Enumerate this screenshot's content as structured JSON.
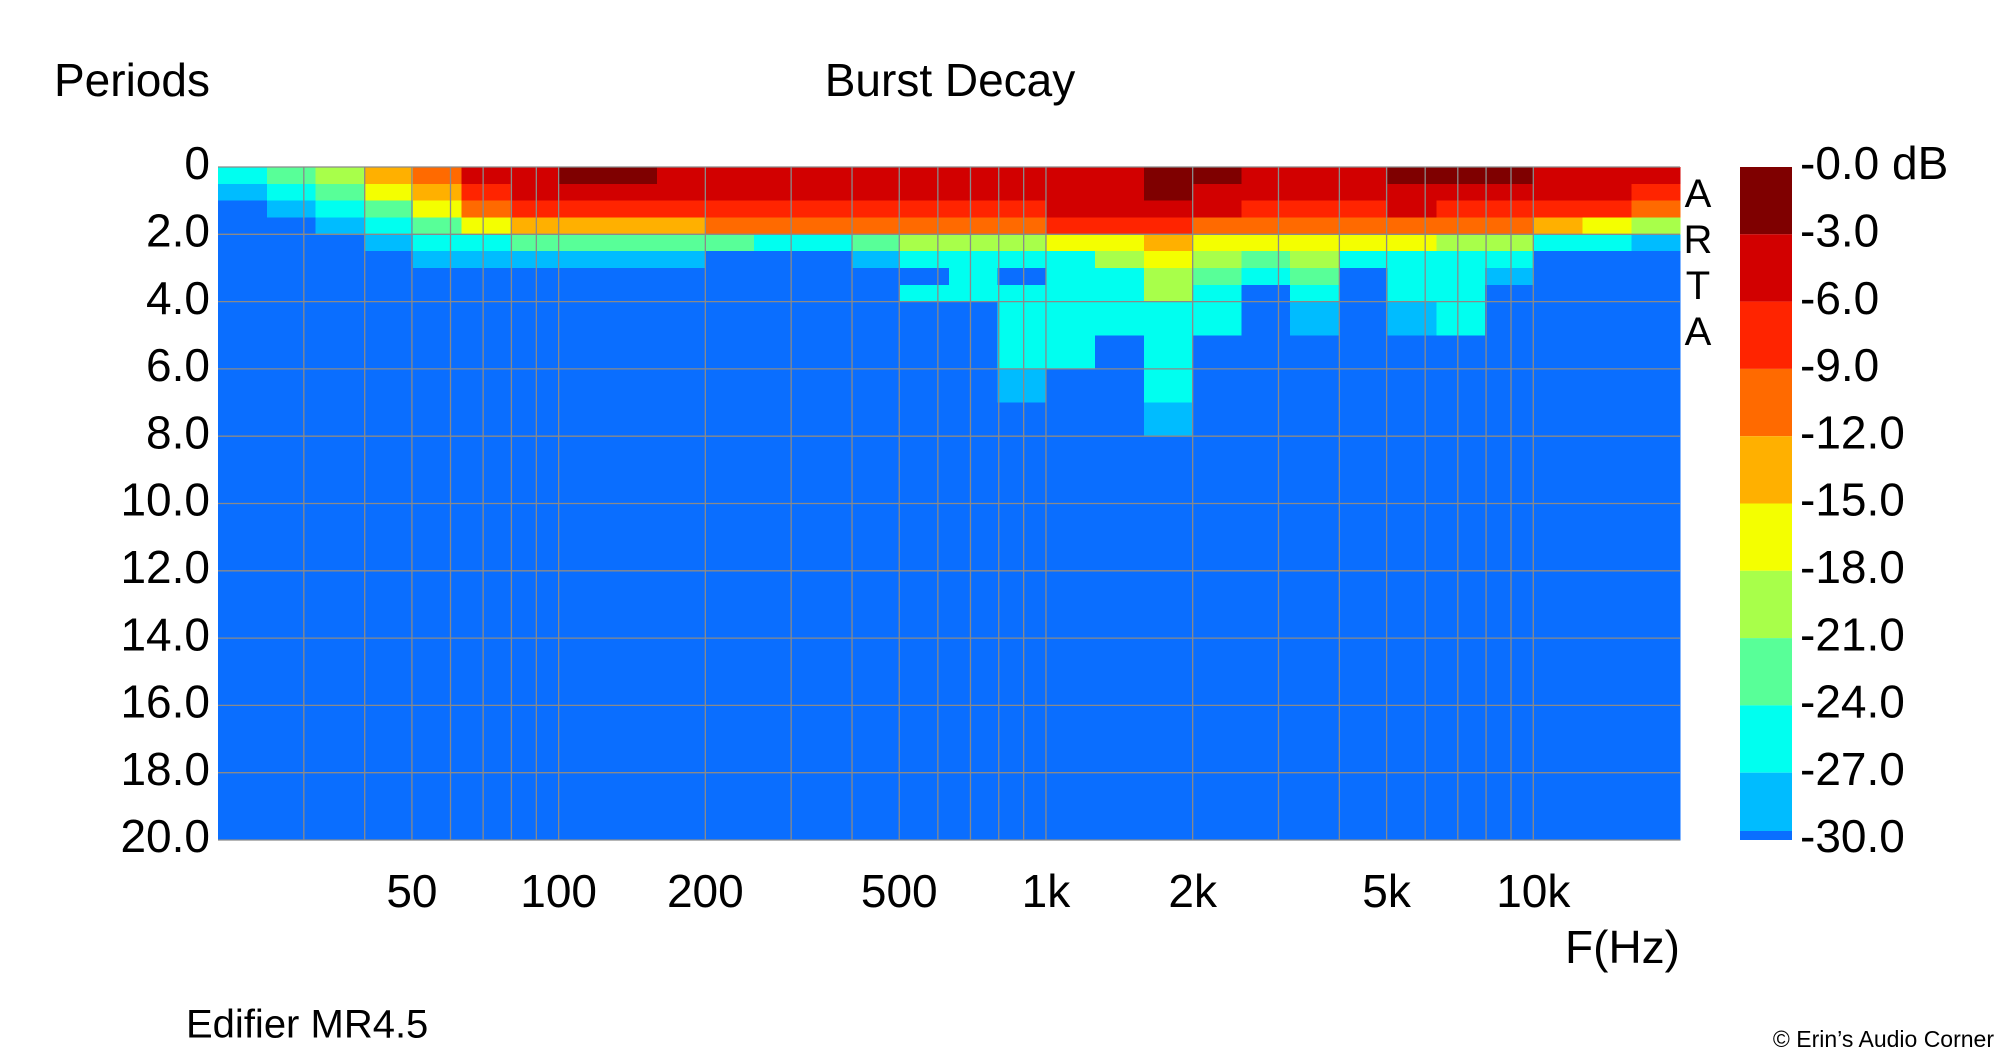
{
  "chart_data": {
    "type": "heatmap",
    "title": "Burst Decay",
    "y_label": "Periods",
    "x_label": "F(Hz)",
    "subtitle": "Edifier MR4.5",
    "watermark": "ARTA",
    "credit": "© Erin’s Audio Corner",
    "log_x": true,
    "grid": true,
    "xlim": [
      20,
      20000
    ],
    "ylim": [
      20,
      0
    ],
    "xticks": [
      50,
      100,
      200,
      500,
      {
        "value": 1000,
        "label": "1k"
      },
      {
        "value": 2000,
        "label": "2k"
      },
      {
        "value": 5000,
        "label": "5k"
      },
      {
        "value": 10000,
        "label": "10k"
      }
    ],
    "xminor": [
      30,
      40,
      60,
      70,
      80,
      90,
      300,
      400,
      600,
      700,
      800,
      900,
      3000,
      4000,
      6000,
      7000,
      8000,
      9000
    ],
    "yticks": [
      0,
      {
        "value": 2,
        "label": "2.0"
      },
      {
        "value": 4,
        "label": "4.0"
      },
      {
        "value": 6,
        "label": "6.0"
      },
      {
        "value": 8,
        "label": "8.0"
      },
      {
        "value": 10,
        "label": "10.0"
      },
      {
        "value": 12,
        "label": "12.0"
      },
      {
        "value": 14,
        "label": "14.0"
      },
      {
        "value": 16,
        "label": "16.0"
      },
      {
        "value": 18,
        "label": "18.0"
      },
      {
        "value": 20,
        "label": "20.0"
      }
    ],
    "x_bins": [
      20,
      25.2,
      31.7,
      39.9,
      50.2,
      63.2,
      79.6,
      100,
      126,
      159,
      200,
      252,
      317,
      399,
      502,
      632,
      796,
      1002,
      1262,
      1589,
      2000,
      2518,
      3170,
      3991,
      5024,
      6325,
      7962,
      10024,
      12619,
      15887,
      20000
    ],
    "y_bins": [
      0,
      0.5,
      1,
      1.5,
      2,
      2.5,
      3,
      3.5,
      4,
      5,
      6,
      7,
      8,
      20
    ],
    "z": [
      [
        -25,
        -28,
        -33,
        -33,
        -33,
        -33,
        -33,
        -33,
        -33,
        -33,
        -33,
        -33,
        -33
      ],
      [
        -22,
        -25,
        -28,
        -33,
        -33,
        -33,
        -33,
        -33,
        -33,
        -33,
        -33,
        -33,
        -33
      ],
      [
        -20,
        -23,
        -26,
        -29,
        -33,
        -33,
        -33,
        -33,
        -33,
        -33,
        -33,
        -33,
        -33
      ],
      [
        -14,
        -17,
        -22,
        -25,
        -27,
        -33,
        -33,
        -33,
        -33,
        -33,
        -33,
        -33,
        -33
      ],
      [
        -9,
        -12,
        -16,
        -22,
        -25,
        -28,
        -33,
        -33,
        -33,
        -33,
        -33,
        -33,
        -33
      ],
      [
        -5,
        -7,
        -10,
        -17,
        -24,
        -27,
        -33,
        -33,
        -33,
        -33,
        -33,
        -33,
        -33
      ],
      [
        -4,
        -5,
        -8,
        -14,
        -23,
        -28,
        -33,
        -33,
        -33,
        -33,
        -33,
        -33,
        -33
      ],
      [
        -2,
        -4,
        -7,
        -12,
        -22,
        -28,
        -33,
        -33,
        -33,
        -33,
        -33,
        -33,
        -33
      ],
      [
        -2,
        -4,
        -7,
        -12,
        -22,
        -28,
        -33,
        -33,
        -33,
        -33,
        -33,
        -33,
        -33
      ],
      [
        -3,
        -5,
        -7,
        -12,
        -22,
        -29,
        -33,
        -33,
        -33,
        -33,
        -33,
        -33,
        -33
      ],
      [
        -4,
        -5,
        -7,
        -11,
        -23,
        -33,
        -33,
        -33,
        -33,
        -33,
        -33,
        -33,
        -33
      ],
      [
        -4,
        -5,
        -7,
        -11,
        -24,
        -33,
        -33,
        -33,
        -33,
        -33,
        -33,
        -33,
        -33
      ],
      [
        -4,
        -5,
        -7,
        -11,
        -24,
        -33,
        -33,
        -33,
        -33,
        -33,
        -33,
        -33,
        -33
      ],
      [
        -4,
        -5,
        -7,
        -10,
        -22,
        -28,
        -33,
        -33,
        -33,
        -33,
        -33,
        -33,
        -33
      ],
      [
        -4,
        -5,
        -6,
        -9,
        -20,
        -25,
        -33,
        -25,
        -33,
        -33,
        -33,
        -33,
        -33
      ],
      [
        -4,
        -5,
        -6,
        -9,
        -19,
        -25,
        -26,
        -25,
        -33,
        -33,
        -33,
        -33,
        -33
      ],
      [
        -4,
        -5,
        -6,
        -9,
        -18,
        -25,
        -33,
        -24,
        -24,
        -25,
        -27,
        -33,
        -33
      ],
      [
        -4,
        -4,
        -5,
        -8,
        -17,
        -24,
        -25,
        -24,
        -24,
        -25,
        -33,
        -33,
        -33
      ],
      [
        -3,
        -3,
        -5,
        -8,
        -15,
        -20,
        -25,
        -24,
        -26,
        -33,
        -33,
        -33,
        -33
      ],
      [
        -2,
        -2,
        -4,
        -8,
        -14,
        -16,
        -18,
        -20,
        -24,
        -26,
        -26,
        -27,
        -33
      ],
      [
        -2,
        -3,
        -5,
        -9,
        -15,
        -19,
        -22,
        -24,
        -26,
        -33,
        -33,
        -33,
        -33
      ],
      [
        -3,
        -4,
        -6,
        -10,
        -16,
        -21,
        -25,
        -33,
        -33,
        -33,
        -33,
        -33,
        -33
      ],
      [
        -3,
        -4,
        -6,
        -9,
        -15,
        -18,
        -22,
        -25,
        -27,
        -33,
        -33,
        -33,
        -33
      ],
      [
        -3,
        -4,
        -6,
        -9,
        -16,
        -24,
        -33,
        -33,
        -33,
        -33,
        -33,
        -33,
        -33
      ],
      [
        -2,
        -3,
        -5,
        -9,
        -16,
        -24,
        -25,
        -26,
        -27,
        -33,
        -33,
        -33,
        -33
      ],
      [
        -2,
        -3,
        -6,
        -10,
        -19,
        -25,
        -25,
        -25,
        -26,
        -33,
        -33,
        -33,
        -33
      ],
      [
        -2,
        -3,
        -6,
        -10,
        -18,
        -25,
        -27,
        -33,
        -33,
        -33,
        -33,
        -33,
        -33
      ],
      [
        -3,
        -4,
        -7,
        -13,
        -25,
        -33,
        -33,
        -33,
        -33,
        -33,
        -33,
        -33,
        -33
      ],
      [
        -4,
        -5,
        -8,
        -16,
        -26,
        -33,
        -33,
        -33,
        -33,
        -33,
        -33,
        -33,
        -33
      ],
      [
        -5,
        -6,
        -9,
        -18,
        -27,
        -33,
        -33,
        -33,
        -33,
        -33,
        -33,
        -33,
        -33
      ]
    ],
    "colorbar": {
      "ticks": [
        {
          "value": 0,
          "label": "-0.0 dB"
        },
        {
          "value": -3,
          "label": "-3.0"
        },
        {
          "value": -6,
          "label": "-6.0"
        },
        {
          "value": -9,
          "label": "-9.0"
        },
        {
          "value": -12,
          "label": "-12.0"
        },
        {
          "value": -15,
          "label": "-15.0"
        },
        {
          "value": -18,
          "label": "-18.0"
        },
        {
          "value": -21,
          "label": "-21.0"
        },
        {
          "value": -24,
          "label": "-24.0"
        },
        {
          "value": -27,
          "label": "-27.0"
        },
        {
          "value": -30,
          "label": "-30.0"
        }
      ],
      "colors": [
        "#7f0000",
        "#d20000",
        "#ff2400",
        "#ff6a00",
        "#ffb000",
        "#f4ff00",
        "#a8ff4a",
        "#58ff98",
        "#00fff0",
        "#00bcff"
      ],
      "floor_color": "#0a6eff"
    }
  }
}
